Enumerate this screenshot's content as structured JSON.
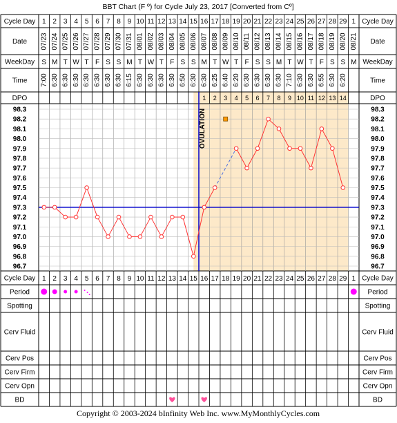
{
  "title": "BBT Chart (F º) for Cycle July 23, 2017  [Converted from Cº]",
  "footer": "Copyright © 2003-2024 bInfinity Web Inc.    www.MyMonthlyCycles.com",
  "row_labels": {
    "cycle_day": "Cycle Day",
    "date": "Date",
    "weekday": "WeekDay",
    "time": "Time",
    "dpo": "DPO",
    "period": "Period",
    "spotting": "Spotting",
    "cerv_fluid": "Cerv Fluid",
    "cerv_pos": "Cerv Pos",
    "cerv_firm": "Cerv Firm",
    "cerv_opn": "Cerv Opn",
    "bd": "BD"
  },
  "ovulation_label": "OVULATION",
  "colors": {
    "line": "#ff3333",
    "coverline": "#0000cc",
    "post_ovulation_fill": "#fde9c9",
    "period_dot": "#ff00ff",
    "bd_heart": "#ff4f9a",
    "marker_square": "#ff9900"
  },
  "chart_data": {
    "type": "line",
    "title": "BBT Chart (F º) for Cycle July 23, 2017  [Converted from Cº]",
    "x_label": "Cycle Day",
    "y_label": "",
    "ylim": [
      96.7,
      98.3
    ],
    "y_ticks": [
      "98.3",
      "98.2",
      "98.1",
      "98.0",
      "97.9",
      "97.8",
      "97.7",
      "97.6",
      "97.5",
      "97.4",
      "97.3",
      "97.2",
      "97.1",
      "97.0",
      "96.9",
      "96.8",
      "96.7"
    ],
    "cycle_days": [
      "1",
      "2",
      "3",
      "4",
      "5",
      "6",
      "7",
      "8",
      "9",
      "10",
      "11",
      "12",
      "13",
      "14",
      "15",
      "16",
      "17",
      "18",
      "19",
      "20",
      "21",
      "22",
      "23",
      "24",
      "25",
      "26",
      "27",
      "28",
      "29",
      "1"
    ],
    "dates": [
      "07/23",
      "07/24",
      "07/25",
      "07/26",
      "07/27",
      "07/28",
      "07/29",
      "07/30",
      "07/31",
      "08/01",
      "08/02",
      "08/03",
      "08/04",
      "08/05",
      "08/06",
      "08/07",
      "08/08",
      "08/09",
      "08/10",
      "08/11",
      "08/12",
      "08/13",
      "08/14",
      "08/15",
      "08/16",
      "08/17",
      "08/18",
      "08/19",
      "08/20",
      "08/21"
    ],
    "weekdays": [
      "S",
      "M",
      "T",
      "W",
      "T",
      "F",
      "S",
      "S",
      "M",
      "T",
      "W",
      "T",
      "F",
      "S",
      "S",
      "M",
      "T",
      "W",
      "T",
      "F",
      "S",
      "S",
      "M",
      "T",
      "W",
      "T",
      "F",
      "S",
      "S",
      "M"
    ],
    "times": [
      "7:00",
      "6:30",
      "6:30",
      "6:30",
      "6:30",
      "6:30",
      "6:30",
      "6:30",
      "6:15",
      "6:30",
      "6:30",
      "6:30",
      "6:30",
      "6:50",
      "6:30",
      "6:30",
      "6:25",
      "6:40",
      "6:20",
      "6:30",
      "6:30",
      "6:30",
      "6:30",
      "7:10",
      "6:30",
      "6:30",
      "6:55",
      "6:30",
      "6:20",
      ""
    ],
    "dpo": [
      "",
      "",
      "",
      "",
      "",
      "",
      "",
      "",
      "",
      "",
      "",
      "",
      "",
      "",
      "",
      "1",
      "2",
      "3",
      "4",
      "5",
      "6",
      "7",
      "8",
      "9",
      "10",
      "11",
      "12",
      "13",
      "14",
      ""
    ],
    "temps": [
      97.3,
      97.3,
      97.2,
      97.2,
      97.5,
      97.2,
      97.0,
      97.2,
      97.0,
      97.0,
      97.2,
      97.0,
      97.2,
      97.2,
      96.8,
      97.3,
      97.5,
      null,
      97.9,
      97.7,
      97.9,
      98.2,
      98.1,
      97.9,
      97.9,
      97.7,
      98.1,
      97.9,
      97.5,
      null
    ],
    "dashed_segment": {
      "from_day_index": 16,
      "to_day_index": 18
    },
    "discarded_temp": {
      "day_index": 17,
      "value": 98.2
    },
    "coverline": 97.3,
    "ovulation_day_index": 14,
    "period": [
      3,
      2,
      1,
      1,
      0.5,
      0,
      0,
      0,
      0,
      0,
      0,
      0,
      0,
      0,
      0,
      0,
      0,
      0,
      0,
      0,
      0,
      0,
      0,
      0,
      0,
      0,
      0,
      0,
      0,
      3
    ],
    "bd_day_indices": [
      12,
      15
    ]
  }
}
